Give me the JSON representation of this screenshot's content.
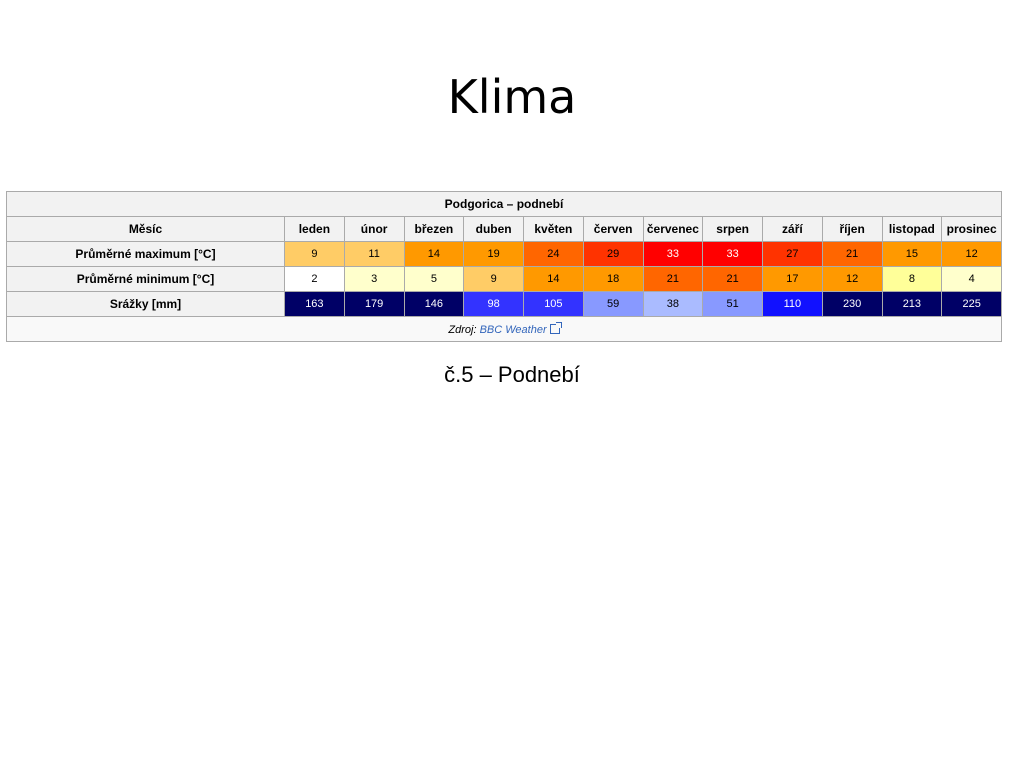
{
  "slide": {
    "title": "Klima",
    "caption": "č.5 – Podnebí"
  },
  "table": {
    "caption": "Podgorica – podnebí",
    "header_label": "Měsíc",
    "months": [
      "leden",
      "únor",
      "březen",
      "duben",
      "květen",
      "červen",
      "červenec",
      "srpen",
      "září",
      "říjen",
      "listopad",
      "prosinec"
    ],
    "rows": [
      {
        "label": "Průměrné maximum [°C]",
        "values": [
          "9",
          "11",
          "14",
          "19",
          "24",
          "29",
          "33",
          "33",
          "27",
          "21",
          "15",
          "12"
        ],
        "colors": [
          "#ffcc66",
          "#ffcc66",
          "#ff9900",
          "#ff9900",
          "#ff6600",
          "#ff3300",
          "#ff0000",
          "#ff0000",
          "#ff3300",
          "#ff6600",
          "#ff9900",
          "#ff9900"
        ],
        "text_colors": [
          "#000",
          "#000",
          "#000",
          "#000",
          "#000",
          "#000",
          "#fff",
          "#fff",
          "#000",
          "#000",
          "#000",
          "#000"
        ]
      },
      {
        "label": "Průměrné minimum [°C]",
        "values": [
          "2",
          "3",
          "5",
          "9",
          "14",
          "18",
          "21",
          "21",
          "17",
          "12",
          "8",
          "4"
        ],
        "colors": [
          "#ffffff",
          "#ffffcc",
          "#ffffcc",
          "#ffcc66",
          "#ff9900",
          "#ff9900",
          "#ff6600",
          "#ff6600",
          "#ff9900",
          "#ff9900",
          "#ffff99",
          "#ffffcc"
        ],
        "text_colors": [
          "#000",
          "#000",
          "#000",
          "#000",
          "#000",
          "#000",
          "#000",
          "#000",
          "#000",
          "#000",
          "#000",
          "#000"
        ]
      },
      {
        "label": "Srážky [mm]",
        "values": [
          "163",
          "179",
          "146",
          "98",
          "105",
          "59",
          "38",
          "51",
          "110",
          "230",
          "213",
          "225"
        ],
        "colors": [
          "#000066",
          "#000066",
          "#000066",
          "#3333ff",
          "#3333ff",
          "#8899ff",
          "#aabbff",
          "#8899ff",
          "#1111ff",
          "#000066",
          "#000066",
          "#000066"
        ],
        "text_colors": [
          "#fff",
          "#fff",
          "#fff",
          "#fff",
          "#fff",
          "#000",
          "#000",
          "#000",
          "#fff",
          "#fff",
          "#fff",
          "#fff"
        ]
      }
    ],
    "source_prefix": "Zdroj:",
    "source_link": "BBC Weather"
  }
}
